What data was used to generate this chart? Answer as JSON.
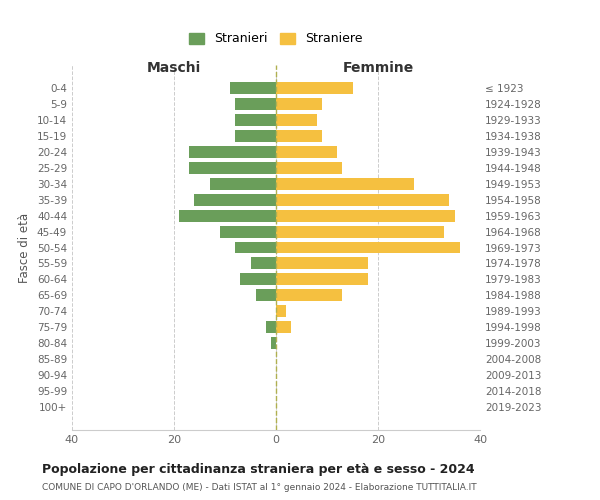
{
  "age_groups": [
    "0-4",
    "5-9",
    "10-14",
    "15-19",
    "20-24",
    "25-29",
    "30-34",
    "35-39",
    "40-44",
    "45-49",
    "50-54",
    "55-59",
    "60-64",
    "65-69",
    "70-74",
    "75-79",
    "80-84",
    "85-89",
    "90-94",
    "95-99",
    "100+"
  ],
  "birth_years": [
    "2019-2023",
    "2014-2018",
    "2009-2013",
    "2004-2008",
    "1999-2003",
    "1994-1998",
    "1989-1993",
    "1984-1988",
    "1979-1983",
    "1974-1978",
    "1969-1973",
    "1964-1968",
    "1959-1963",
    "1954-1958",
    "1949-1953",
    "1944-1948",
    "1939-1943",
    "1934-1938",
    "1929-1933",
    "1924-1928",
    "≤ 1923"
  ],
  "maschi": [
    9,
    8,
    8,
    8,
    17,
    17,
    13,
    16,
    19,
    11,
    8,
    5,
    7,
    4,
    0,
    2,
    1,
    0,
    0,
    0,
    0
  ],
  "femmine": [
    15,
    9,
    8,
    9,
    12,
    13,
    27,
    34,
    35,
    33,
    36,
    18,
    18,
    13,
    2,
    3,
    0,
    0,
    0,
    0,
    0
  ],
  "maschi_color": "#6a9e5a",
  "femmine_color": "#f5c040",
  "background_color": "#ffffff",
  "grid_color": "#cccccc",
  "title": "Popolazione per cittadinanza straniera per età e sesso - 2024",
  "subtitle": "COMUNE DI CAPO D'ORLANDO (ME) - Dati ISTAT al 1° gennaio 2024 - Elaborazione TUTTITALIA.IT",
  "xlabel_left": "Maschi",
  "xlabel_right": "Femmine",
  "ylabel_left": "Fasce di età",
  "legend_maschi": "Stranieri",
  "legend_femmine": "Straniere",
  "xlim": 40
}
